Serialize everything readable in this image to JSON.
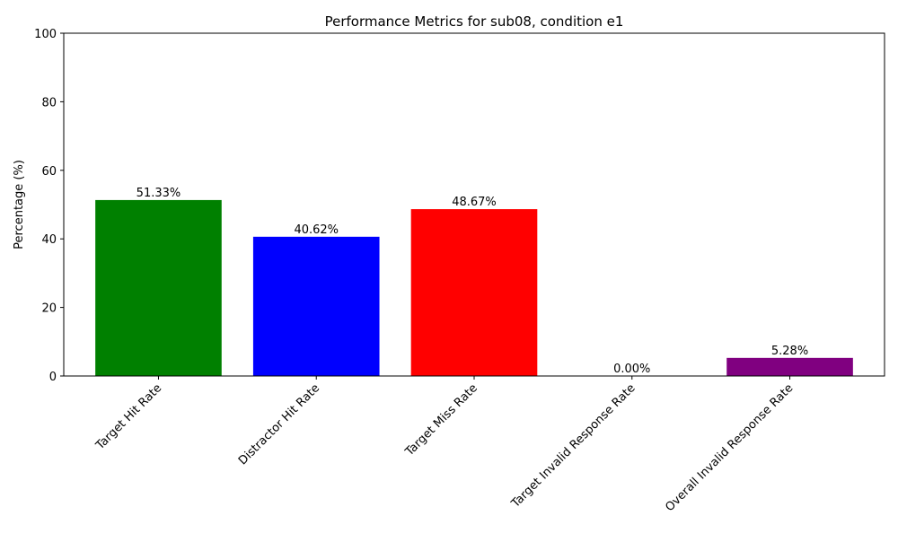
{
  "chart_data": {
    "type": "bar",
    "title": "Performance Metrics for sub08, condition e1",
    "xlabel": "",
    "ylabel": "Percentage (%)",
    "ylim": [
      0,
      100
    ],
    "yticks": [
      0,
      20,
      40,
      60,
      80,
      100
    ],
    "grid": false,
    "categories": [
      "Target Hit Rate",
      "Distractor Hit Rate",
      "Target Miss Rate",
      "Target Invalid Response Rate",
      "Overall Invalid Response Rate"
    ],
    "values": [
      51.33,
      40.62,
      48.67,
      0.0,
      5.28
    ],
    "value_labels": [
      "51.33%",
      "40.62%",
      "48.67%",
      "0.00%",
      "5.28%"
    ],
    "colors": [
      "#008000",
      "#0000ff",
      "#ff0000",
      "#ffa500",
      "#800080"
    ]
  }
}
